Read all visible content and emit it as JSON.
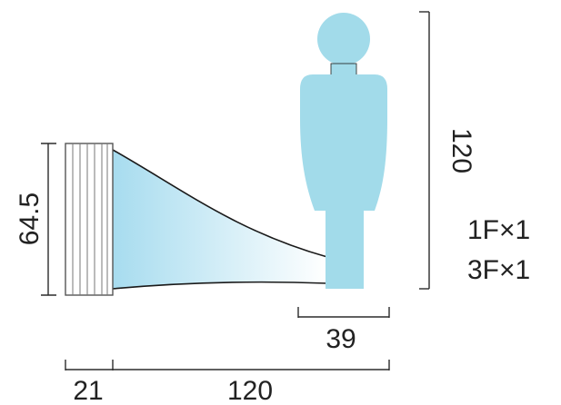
{
  "dimensions": {
    "figure_height": "120",
    "device_height": "64.5",
    "figure_width": "39",
    "device_depth": "21",
    "distance": "120"
  },
  "notes": {
    "line1": "1F×1",
    "line2": "3F×1"
  },
  "colors": {
    "figure": "#a2dbea",
    "beam_light": "#ffffff",
    "beam_dark": "#a7dcef",
    "device_outline": "#555555",
    "dimension_line": "#2b2b2b"
  }
}
